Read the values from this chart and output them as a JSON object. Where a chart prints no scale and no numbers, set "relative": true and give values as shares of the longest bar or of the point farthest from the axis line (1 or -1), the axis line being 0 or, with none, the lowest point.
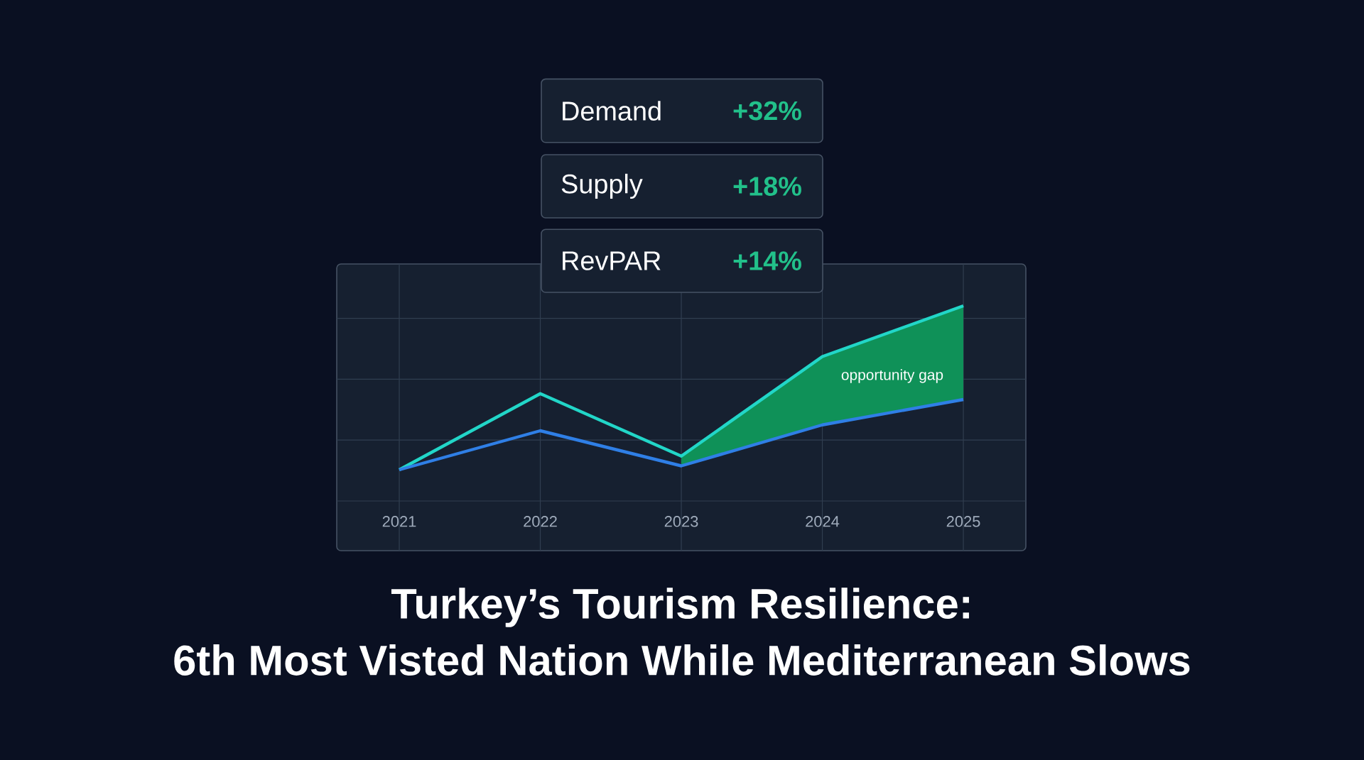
{
  "chart_data": {
    "type": "line",
    "relative": true,
    "title": "Turkey’s Tourism Resilience:",
    "subtitle": "6th Most Visted Nation While Mediterranean Slows",
    "categories": [
      "2021",
      "2022",
      "2023",
      "2024",
      "2025"
    ],
    "series": [
      {
        "color": "#22d6c8",
        "values": [
          0.16,
          0.55,
          0.23,
          0.74,
          1
        ],
        "lower": [
          null,
          null,
          0.18,
          0.39,
          0.52
        ],
        "upper": [
          null,
          null,
          0.23,
          0.74,
          1
        ]
      },
      {
        "color": "#2f7fe6",
        "values": [
          0.16,
          0.36,
          0.18,
          0.39,
          0.52
        ]
      }
    ],
    "annotations": [
      "Demand",
      "+32%",
      "Supply",
      "+18%",
      "RevPAR",
      "+14%",
      "opportunity gap"
    ],
    "grid": true
  }
}
